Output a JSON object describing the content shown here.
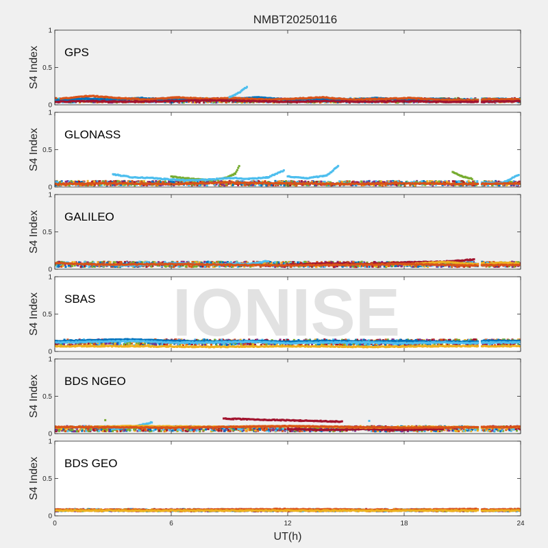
{
  "chart_data": {
    "type": "scatter",
    "title": "NMBT20250116",
    "watermark": "IONISE",
    "xlabel": "UT(h)",
    "ylabel": "S4 Index",
    "xlim": [
      0,
      24
    ],
    "ylim": [
      0,
      1
    ],
    "x_ticks": [
      0,
      6,
      12,
      18,
      24
    ],
    "y_ticks": [
      0,
      0.5,
      1
    ],
    "grid": false,
    "data_gap": [
      21.8,
      22.0
    ],
    "series_colors": [
      "#0072bd",
      "#d95319",
      "#edb120",
      "#7e2f8e",
      "#77ac30",
      "#4dbeee",
      "#a2142f"
    ],
    "panels": [
      {
        "name": "GPS",
        "background": "#f0f0f0",
        "base": [
          0.03,
          0.09
        ],
        "series": [
          {
            "color": "#0072bd",
            "x": [
              0.1,
              1.5,
              3.0,
              4.5,
              6.0,
              7.5,
              9.0,
              10.5,
              12.0,
              13.5,
              15.0,
              16.5,
              18.0,
              19.5,
              21.5,
              22.2,
              23.0,
              23.9
            ],
            "y": [
              0.06,
              0.08,
              0.07,
              0.09,
              0.06,
              0.08,
              0.07,
              0.1,
              0.07,
              0.08,
              0.06,
              0.09,
              0.07,
              0.08,
              0.06,
              0.07,
              0.08,
              0.06
            ]
          },
          {
            "color": "#d95319",
            "x": [
              0.3,
              1.8,
              3.3,
              4.8,
              6.3,
              7.8,
              9.3,
              10.8,
              12.3,
              13.8,
              15.3,
              16.8,
              18.3,
              19.8,
              21.6,
              22.4,
              23.2,
              23.9
            ],
            "y": [
              0.08,
              0.12,
              0.09,
              0.07,
              0.1,
              0.08,
              0.09,
              0.07,
              0.08,
              0.1,
              0.07,
              0.08,
              0.09,
              0.07,
              0.06,
              0.08,
              0.07,
              0.08
            ]
          },
          {
            "color": "#a2142f",
            "x": [
              0.0,
              2.0,
              4.0,
              6.0,
              8.0,
              10.0,
              12.0,
              14.0,
              16.0,
              18.0,
              20.0,
              21.7,
              22.1,
              24.0
            ],
            "y": [
              0.04,
              0.05,
              0.04,
              0.05,
              0.06,
              0.05,
              0.04,
              0.05,
              0.04,
              0.05,
              0.04,
              0.04,
              0.04,
              0.05
            ]
          },
          {
            "color": "#4dbeee",
            "x": [
              9.0,
              9.3,
              9.6,
              9.9
            ],
            "y": [
              0.1,
              0.14,
              0.18,
              0.24
            ]
          }
        ]
      },
      {
        "name": "GLONASS",
        "background": "#ffffff",
        "base": [
          0.02,
          0.08
        ],
        "series": [
          {
            "color": "#77ac30",
            "x": [
              6.0,
              7.0,
              8.0,
              8.8,
              9.3,
              9.5
            ],
            "y": [
              0.14,
              0.11,
              0.09,
              0.12,
              0.18,
              0.28
            ]
          },
          {
            "color": "#4dbeee",
            "x": [
              3.0,
              4.0,
              5.0,
              6.0,
              7.0,
              8.0,
              9.0,
              10.0,
              11.0,
              11.8
            ],
            "y": [
              0.17,
              0.13,
              0.12,
              0.1,
              0.09,
              0.1,
              0.12,
              0.11,
              0.13,
              0.22
            ]
          },
          {
            "color": "#4dbeee",
            "x": [
              12.0,
              13.0,
              14.0,
              14.6
            ],
            "y": [
              0.14,
              0.12,
              0.15,
              0.28
            ]
          },
          {
            "color": "#77ac30",
            "x": [
              20.5,
              21.0,
              21.5
            ],
            "y": [
              0.2,
              0.14,
              0.11
            ]
          },
          {
            "color": "#4dbeee",
            "x": [
              22.0,
              23.0,
              23.9
            ],
            "y": [
              0.06,
              0.05,
              0.16
            ]
          },
          {
            "color": "#d95319",
            "x": [
              0.0,
              3.0,
              6.0,
              9.0,
              12.0,
              15.0,
              18.0,
              21.0,
              24.0
            ],
            "y": [
              0.04,
              0.05,
              0.04,
              0.06,
              0.05,
              0.04,
              0.05,
              0.04,
              0.05
            ]
          }
        ]
      },
      {
        "name": "GALILEO",
        "background": "#f0f0f0",
        "base": [
          0.03,
          0.1
        ],
        "series": [
          {
            "color": "#a2142f",
            "x": [
              12.0,
              14.0,
              16.0,
              18.0,
              20.0,
              21.6
            ],
            "y": [
              0.06,
              0.08,
              0.07,
              0.09,
              0.1,
              0.13
            ]
          },
          {
            "color": "#edb120",
            "x": [
              18.0,
              19.0,
              20.0,
              22.0,
              23.0,
              23.9
            ],
            "y": [
              0.06,
              0.08,
              0.1,
              0.06,
              0.09,
              0.07
            ]
          },
          {
            "color": "#4dbeee",
            "x": [
              2.0,
              4.0,
              6.0,
              8.0,
              10.0,
              11.0
            ],
            "y": [
              0.06,
              0.05,
              0.08,
              0.06,
              0.07,
              0.11
            ]
          },
          {
            "color": "#d95319",
            "x": [
              0.0,
              3.0,
              6.0,
              9.0,
              12.0,
              15.0,
              18.0,
              21.0,
              24.0
            ],
            "y": [
              0.08,
              0.06,
              0.07,
              0.06,
              0.05,
              0.06,
              0.07,
              0.05,
              0.06
            ]
          }
        ]
      },
      {
        "name": "SBAS",
        "background": "#ffffff",
        "base": [
          0.08,
          0.16
        ],
        "series": [
          {
            "color": "#0072bd",
            "x": [
              0.0,
              2.0,
              4.0,
              6.0,
              8.0,
              10.0,
              12.0,
              14.0,
              16.0,
              18.0,
              20.0,
              21.7,
              22.1,
              24.0
            ],
            "y": [
              0.14,
              0.15,
              0.16,
              0.14,
              0.13,
              0.14,
              0.13,
              0.14,
              0.13,
              0.14,
              0.13,
              0.13,
              0.14,
              0.14
            ]
          },
          {
            "color": "#4dbeee",
            "x": [
              0.0,
              2.0,
              4.0,
              6.0,
              8.0,
              10.0,
              12.0,
              14.0,
              16.0,
              18.0,
              20.0,
              21.7,
              22.1,
              24.0
            ],
            "y": [
              0.12,
              0.13,
              0.14,
              0.12,
              0.12,
              0.13,
              0.11,
              0.12,
              0.12,
              0.11,
              0.12,
              0.11,
              0.12,
              0.12
            ]
          },
          {
            "color": "#edb120",
            "x": [
              0.0,
              4.0,
              8.0,
              12.0,
              16.0,
              20.0,
              24.0
            ],
            "y": [
              0.07,
              0.07,
              0.06,
              0.07,
              0.06,
              0.07,
              0.07
            ]
          }
        ]
      },
      {
        "name": "BDS NGEO",
        "background": "#f0f0f0",
        "base": [
          0.03,
          0.1
        ],
        "series": [
          {
            "color": "#a2142f",
            "x": [
              12.0,
              14.0,
              16.0,
              18.0,
              20.0
            ],
            "y": [
              0.06,
              0.05,
              0.06,
              0.05,
              0.06
            ]
          },
          {
            "color": "#4dbeee",
            "x": [
              3.0,
              4.0,
              5.0
            ],
            "y": [
              0.06,
              0.09,
              0.15
            ]
          },
          {
            "color": "#edb120",
            "x": [
              0.0,
              4.0,
              8.0,
              12.0,
              16.0,
              20.0,
              22.0,
              24.0
            ],
            "y": [
              0.08,
              0.1,
              0.09,
              0.1,
              0.08,
              0.09,
              0.08,
              0.09
            ]
          },
          {
            "color": "#d95319",
            "x": [
              0.0,
              6.0,
              12.0,
              18.0,
              24.0
            ],
            "y": [
              0.09,
              0.08,
              0.1,
              0.08,
              0.09
            ]
          },
          {
            "color": "#a2142f",
            "x": [
              8.7,
              14.8
            ],
            "y": [
              0.2,
              0.16
            ]
          },
          {
            "color": "#4dbeee",
            "x": [
              16.2
            ],
            "y": [
              0.17
            ]
          },
          {
            "color": "#77ac30",
            "x": [
              2.6
            ],
            "y": [
              0.18
            ]
          }
        ]
      },
      {
        "name": "BDS GEO",
        "background": "#ffffff",
        "base": [
          0.06,
          0.09
        ],
        "series": [
          {
            "color": "#d95319",
            "x": [
              0.0,
              6.0,
              12.0,
              18.0,
              21.7,
              22.1,
              24.0
            ],
            "y": [
              0.08,
              0.08,
              0.09,
              0.08,
              0.09,
              0.08,
              0.09
            ]
          },
          {
            "color": "#edb120",
            "x": [
              0.0,
              6.0,
              12.0,
              18.0,
              21.7,
              22.1,
              24.0
            ],
            "y": [
              0.07,
              0.07,
              0.07,
              0.07,
              0.07,
              0.07,
              0.07
            ]
          }
        ]
      }
    ]
  }
}
